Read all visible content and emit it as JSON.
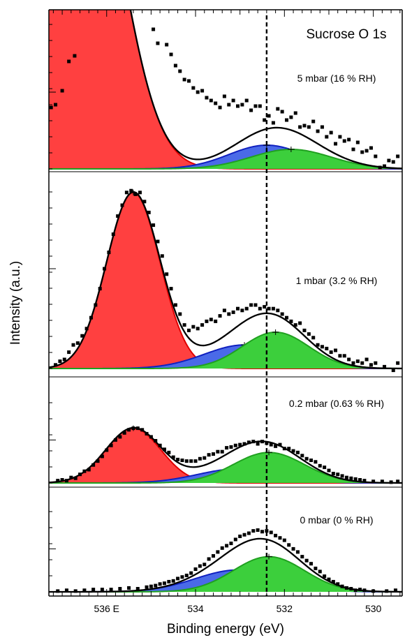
{
  "chart_data": {
    "type": "line",
    "title": "Sucrose O 1s",
    "xlabel": "Binding energy (eV)",
    "ylabel": "Intensity (a.u.)",
    "x_reversed": true,
    "xlim": [
      537.3,
      529.35
    ],
    "major_ticks": [
      536,
      534,
      532,
      530
    ],
    "tick_labels": [
      "536 E",
      "534",
      "532",
      "530"
    ],
    "reference_line_x": 532.4,
    "colors": {
      "red_peak": "#ff4040",
      "blue_peak": "#4a6ae8",
      "green_peak": "#3ccf3c",
      "fit": "#000000",
      "red_edge": "#e00000",
      "blue_edge": "#1020c0",
      "green_edge": "#20a020"
    },
    "panels": [
      {
        "label": "5 mbar (16 % RH)",
        "ylim": [
          0,
          100
        ],
        "peaks": [
          {
            "name": "",
            "color": "red",
            "center": 536.5,
            "sigma": 0.85,
            "height": 240
          },
          {
            "name": "",
            "color": "blue",
            "center": 532.4,
            "sigma": 0.85,
            "height": 17
          },
          {
            "name": "",
            "color": "green",
            "center": 531.85,
            "sigma": 0.9,
            "height": 14
          }
        ],
        "points": [
          [
            537.25,
            44
          ],
          [
            537.15,
            46
          ],
          [
            537.0,
            56
          ],
          [
            536.85,
            77
          ],
          [
            536.72,
            81
          ],
          [
            534.95,
            100
          ],
          [
            534.85,
            90
          ],
          [
            534.65,
            89
          ],
          [
            534.55,
            82
          ],
          [
            534.45,
            74
          ],
          [
            534.35,
            70
          ],
          [
            534.25,
            64
          ],
          [
            534.15,
            63
          ],
          [
            534.05,
            58
          ],
          [
            533.95,
            55
          ],
          [
            533.85,
            56
          ],
          [
            533.75,
            51
          ],
          [
            533.65,
            49
          ],
          [
            533.55,
            47
          ],
          [
            533.45,
            44
          ],
          [
            533.35,
            52
          ],
          [
            533.25,
            46
          ],
          [
            533.15,
            49
          ],
          [
            533.05,
            45
          ],
          [
            532.95,
            46
          ],
          [
            532.85,
            49
          ],
          [
            532.75,
            42
          ],
          [
            532.65,
            45
          ],
          [
            532.55,
            45
          ],
          [
            532.45,
            35
          ],
          [
            532.35,
            38
          ],
          [
            532.25,
            33
          ],
          [
            532.15,
            43
          ],
          [
            532.05,
            41
          ],
          [
            531.95,
            35
          ],
          [
            531.85,
            37
          ],
          [
            531.75,
            40
          ],
          [
            531.65,
            30
          ],
          [
            531.55,
            31
          ],
          [
            531.45,
            30
          ],
          [
            531.35,
            34
          ],
          [
            531.25,
            27
          ],
          [
            531.15,
            30
          ],
          [
            531.05,
            23
          ],
          [
            530.95,
            26
          ],
          [
            530.85,
            18
          ],
          [
            530.75,
            23
          ],
          [
            530.65,
            20
          ],
          [
            530.55,
            21
          ],
          [
            530.45,
            14
          ],
          [
            530.35,
            19
          ],
          [
            530.25,
            12
          ],
          [
            530.15,
            13
          ],
          [
            530.05,
            15
          ],
          [
            529.95,
            9
          ],
          [
            529.85,
            1
          ],
          [
            529.75,
            2
          ],
          [
            529.65,
            6
          ],
          [
            529.55,
            5
          ],
          [
            529.45,
            9
          ]
        ]
      },
      {
        "label": "1 mbar (3.2 % RH)",
        "ylim": [
          0,
          100
        ],
        "peaks": [
          {
            "name": "",
            "color": "red",
            "center": 535.4,
            "sigma": 0.6,
            "height": 97
          },
          {
            "name": "",
            "color": "blue",
            "center": 532.9,
            "sigma": 0.9,
            "height": 13
          },
          {
            "name": "",
            "color": "green",
            "center": 532.2,
            "sigma": 0.75,
            "height": 20
          }
        ],
        "points": [
          [
            537.15,
            2
          ],
          [
            537.05,
            4
          ],
          [
            536.95,
            5
          ],
          [
            536.85,
            9
          ],
          [
            536.75,
            13
          ],
          [
            536.65,
            14
          ],
          [
            536.55,
            18
          ],
          [
            536.45,
            22
          ],
          [
            536.35,
            28
          ],
          [
            536.25,
            35
          ],
          [
            536.15,
            44
          ],
          [
            536.05,
            55
          ],
          [
            535.95,
            64
          ],
          [
            535.85,
            74
          ],
          [
            535.75,
            84
          ],
          [
            535.65,
            90
          ],
          [
            535.55,
            97
          ],
          [
            535.45,
            98
          ],
          [
            535.35,
            96
          ],
          [
            535.25,
            97
          ],
          [
            535.15,
            92
          ],
          [
            535.05,
            86
          ],
          [
            534.95,
            79
          ],
          [
            534.85,
            70
          ],
          [
            534.75,
            62
          ],
          [
            534.65,
            52
          ],
          [
            534.55,
            44
          ],
          [
            534.45,
            35
          ],
          [
            534.35,
            30
          ],
          [
            534.25,
            24
          ],
          [
            534.15,
            21
          ],
          [
            534.05,
            23
          ],
          [
            533.95,
            22
          ],
          [
            533.85,
            24
          ],
          [
            533.75,
            26
          ],
          [
            533.65,
            27
          ],
          [
            533.55,
            26
          ],
          [
            533.45,
            29
          ],
          [
            533.35,
            32
          ],
          [
            533.25,
            30
          ],
          [
            533.15,
            31
          ],
          [
            533.05,
            33
          ],
          [
            532.95,
            32
          ],
          [
            532.85,
            33
          ],
          [
            532.75,
            35
          ],
          [
            532.65,
            35
          ],
          [
            532.55,
            33
          ],
          [
            532.45,
            34
          ],
          [
            532.35,
            33
          ],
          [
            532.25,
            33
          ],
          [
            532.15,
            32
          ],
          [
            532.05,
            30
          ],
          [
            531.95,
            28
          ],
          [
            531.85,
            26
          ],
          [
            531.75,
            24
          ],
          [
            531.65,
            25
          ],
          [
            531.55,
            21
          ],
          [
            531.45,
            19
          ],
          [
            531.35,
            17
          ],
          [
            531.25,
            13
          ],
          [
            531.15,
            12
          ],
          [
            531.05,
            11
          ],
          [
            530.95,
            9
          ],
          [
            530.85,
            10
          ],
          [
            530.75,
            7
          ],
          [
            530.65,
            7
          ],
          [
            530.55,
            5
          ],
          [
            530.45,
            3
          ],
          [
            530.35,
            4
          ],
          [
            530.25,
            3
          ],
          [
            530.15,
            5
          ],
          [
            530.05,
            2
          ],
          [
            529.95,
            3
          ],
          [
            529.75,
            1
          ],
          [
            529.55,
            -1
          ],
          [
            529.45,
            3
          ]
        ]
      },
      {
        "label": "0.2 mbar (0.63 % RH)",
        "ylim": [
          0,
          100
        ],
        "peaks": [
          {
            "name": "",
            "color": "red",
            "center": 535.4,
            "sigma": 0.62,
            "height": 70
          },
          {
            "name": "",
            "color": "blue",
            "center": 533.05,
            "sigma": 0.9,
            "height": 18
          },
          {
            "name": "",
            "color": "green",
            "center": 532.35,
            "sigma": 0.8,
            "height": 39
          }
        ],
        "points": [
          [
            537.1,
            3
          ],
          [
            537.0,
            4
          ],
          [
            536.9,
            3
          ],
          [
            536.8,
            7
          ],
          [
            536.7,
            6
          ],
          [
            536.6,
            11
          ],
          [
            536.5,
            15
          ],
          [
            536.4,
            17
          ],
          [
            536.3,
            23
          ],
          [
            536.2,
            28
          ],
          [
            536.1,
            34
          ],
          [
            536.0,
            42
          ],
          [
            535.9,
            48
          ],
          [
            535.8,
            55
          ],
          [
            535.7,
            59
          ],
          [
            535.6,
            64
          ],
          [
            535.5,
            68
          ],
          [
            535.4,
            70
          ],
          [
            535.3,
            70
          ],
          [
            535.2,
            68
          ],
          [
            535.1,
            63
          ],
          [
            535.0,
            59
          ],
          [
            534.9,
            54
          ],
          [
            534.8,
            48
          ],
          [
            534.7,
            43
          ],
          [
            534.6,
            39
          ],
          [
            534.5,
            33
          ],
          [
            534.4,
            30
          ],
          [
            534.3,
            29
          ],
          [
            534.2,
            28
          ],
          [
            534.1,
            28
          ],
          [
            534.0,
            28
          ],
          [
            533.9,
            31
          ],
          [
            533.8,
            32
          ],
          [
            533.7,
            36
          ],
          [
            533.6,
            37
          ],
          [
            533.5,
            40
          ],
          [
            533.4,
            40
          ],
          [
            533.3,
            45
          ],
          [
            533.2,
            46
          ],
          [
            533.1,
            48
          ],
          [
            533.0,
            49
          ],
          [
            532.9,
            50
          ],
          [
            532.8,
            52
          ],
          [
            532.7,
            53
          ],
          [
            532.6,
            50
          ],
          [
            532.5,
            53
          ],
          [
            532.4,
            51
          ],
          [
            532.3,
            49
          ],
          [
            532.2,
            47
          ],
          [
            532.1,
            49
          ],
          [
            532.0,
            44
          ],
          [
            531.9,
            44
          ],
          [
            531.8,
            41
          ],
          [
            531.7,
            39
          ],
          [
            531.6,
            35
          ],
          [
            531.5,
            31
          ],
          [
            531.4,
            29
          ],
          [
            531.3,
            27
          ],
          [
            531.2,
            22
          ],
          [
            531.1,
            20
          ],
          [
            531.0,
            16
          ],
          [
            530.9,
            12
          ],
          [
            530.8,
            11
          ],
          [
            530.7,
            9
          ],
          [
            530.6,
            7
          ],
          [
            530.5,
            6
          ],
          [
            530.4,
            5
          ],
          [
            530.3,
            4
          ],
          [
            530.2,
            3
          ],
          [
            530.0,
            2
          ],
          [
            529.8,
            2
          ],
          [
            529.6,
            1
          ],
          [
            529.45,
            2
          ]
        ]
      },
      {
        "label": "0 mbar (0 % RH)",
        "ylim": [
          0,
          100
        ],
        "peaks": [
          {
            "name": "",
            "color": "blue",
            "center": 533.05,
            "sigma": 0.95,
            "height": 28
          },
          {
            "name": "",
            "color": "green",
            "center": 532.35,
            "sigma": 0.8,
            "height": 45
          }
        ],
        "points": [
          [
            537.1,
            1
          ],
          [
            536.9,
            2
          ],
          [
            536.7,
            1
          ],
          [
            536.5,
            2
          ],
          [
            536.3,
            3
          ],
          [
            536.1,
            3
          ],
          [
            535.9,
            3
          ],
          [
            535.7,
            4
          ],
          [
            535.5,
            5
          ],
          [
            535.3,
            4
          ],
          [
            535.1,
            6
          ],
          [
            535.0,
            7
          ],
          [
            534.9,
            8
          ],
          [
            534.8,
            10
          ],
          [
            534.7,
            11
          ],
          [
            534.6,
            13
          ],
          [
            534.5,
            14
          ],
          [
            534.4,
            17
          ],
          [
            534.3,
            19
          ],
          [
            534.2,
            21
          ],
          [
            534.1,
            24
          ],
          [
            534.0,
            29
          ],
          [
            533.9,
            33
          ],
          [
            533.8,
            35
          ],
          [
            533.7,
            42
          ],
          [
            533.6,
            46
          ],
          [
            533.5,
            51
          ],
          [
            533.4,
            56
          ],
          [
            533.3,
            59
          ],
          [
            533.2,
            62
          ],
          [
            533.1,
            67
          ],
          [
            533.0,
            71
          ],
          [
            532.9,
            73
          ],
          [
            532.8,
            75
          ],
          [
            532.7,
            78
          ],
          [
            532.6,
            79
          ],
          [
            532.5,
            77
          ],
          [
            532.4,
            78
          ],
          [
            532.3,
            76
          ],
          [
            532.2,
            72
          ],
          [
            532.1,
            69
          ],
          [
            532.0,
            66
          ],
          [
            531.9,
            60
          ],
          [
            531.8,
            55
          ],
          [
            531.7,
            51
          ],
          [
            531.6,
            45
          ],
          [
            531.5,
            40
          ],
          [
            531.4,
            36
          ],
          [
            531.3,
            30
          ],
          [
            531.2,
            26
          ],
          [
            531.1,
            20
          ],
          [
            531.0,
            16
          ],
          [
            530.9,
            13
          ],
          [
            530.8,
            10
          ],
          [
            530.7,
            7
          ],
          [
            530.6,
            5
          ],
          [
            530.5,
            4
          ],
          [
            530.4,
            2
          ],
          [
            530.3,
            3
          ],
          [
            530.2,
            2
          ],
          [
            530.0,
            1
          ],
          [
            529.7,
            1
          ],
          [
            529.5,
            2
          ]
        ]
      }
    ]
  }
}
